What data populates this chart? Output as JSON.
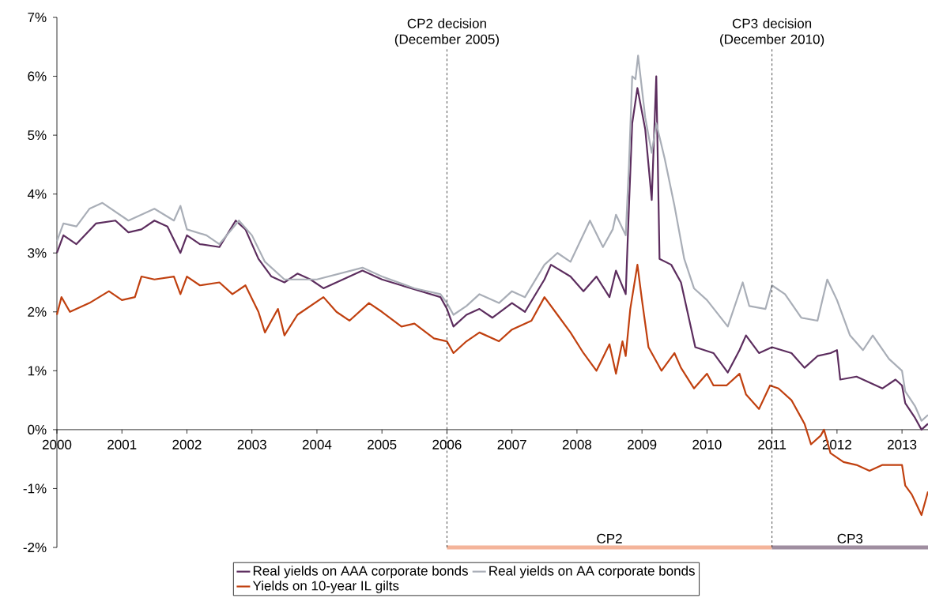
{
  "chart_data": {
    "type": "line",
    "xlim": [
      2000,
      2013.4
    ],
    "ylim": [
      -2,
      7
    ],
    "xticks": [
      {
        "value": 2000,
        "label": "2000"
      },
      {
        "value": 2001,
        "label": "2001"
      },
      {
        "value": 2002,
        "label": "2002"
      },
      {
        "value": 2003,
        "label": "2003"
      },
      {
        "value": 2004,
        "label": "2004"
      },
      {
        "value": 2005,
        "label": "2005"
      },
      {
        "value": 2006,
        "label": "2006"
      },
      {
        "value": 2007,
        "label": "2007"
      },
      {
        "value": 2008,
        "label": "2008"
      },
      {
        "value": 2009,
        "label": "2009"
      },
      {
        "value": 2010,
        "label": "2010"
      },
      {
        "value": 2011,
        "label": "2011"
      },
      {
        "value": 2012,
        "label": "2012"
      },
      {
        "value": 2013,
        "label": "2013"
      }
    ],
    "yticks": [
      {
        "value": -2,
        "label": "-2%"
      },
      {
        "value": -1,
        "label": "-1%"
      },
      {
        "value": 0,
        "label": "0%"
      },
      {
        "value": 1,
        "label": "1%"
      },
      {
        "value": 2,
        "label": "2%"
      },
      {
        "value": 3,
        "label": "3%"
      },
      {
        "value": 4,
        "label": "4%"
      },
      {
        "value": 5,
        "label": "5%"
      },
      {
        "value": 6,
        "label": "6%"
      },
      {
        "value": 7,
        "label": "7%"
      }
    ],
    "legend": "bottom",
    "series": [
      {
        "name": "Real yields on AAA corporate bonds",
        "color": "#5c2d5e",
        "x": [
          2000.0,
          2000.1,
          2000.3,
          2000.6,
          2000.9,
          2001.1,
          2001.3,
          2001.5,
          2001.7,
          2001.9,
          2002.0,
          2002.2,
          2002.5,
          2002.75,
          2002.9,
          2003.1,
          2003.3,
          2003.5,
          2003.7,
          2003.9,
          2004.1,
          2004.5,
          2004.7,
          2005.0,
          2005.3,
          2005.6,
          2005.9,
          2006.0,
          2006.1,
          2006.3,
          2006.5,
          2006.7,
          2007.0,
          2007.2,
          2007.5,
          2007.6,
          2007.9,
          2008.1,
          2008.3,
          2008.5,
          2008.6,
          2008.75,
          2008.8,
          2008.85,
          2008.93,
          2009.05,
          2009.15,
          2009.22,
          2009.27,
          2009.45,
          2009.6,
          2009.82,
          2010.1,
          2010.32,
          2010.5,
          2010.6,
          2010.8,
          2011.0,
          2011.3,
          2011.5,
          2011.7,
          2011.9,
          2012.0,
          2012.05,
          2012.3,
          2012.5,
          2012.7,
          2012.9,
          2013.0,
          2013.05,
          2013.2,
          2013.3,
          2013.4
        ],
        "values": [
          3.0,
          3.3,
          3.15,
          3.5,
          3.55,
          3.35,
          3.4,
          3.55,
          3.45,
          3.0,
          3.3,
          3.15,
          3.1,
          3.55,
          3.4,
          2.9,
          2.6,
          2.5,
          2.65,
          2.55,
          2.4,
          2.6,
          2.7,
          2.55,
          2.45,
          2.35,
          2.25,
          2.05,
          1.75,
          1.95,
          2.05,
          1.9,
          2.15,
          2.0,
          2.55,
          2.8,
          2.6,
          2.35,
          2.6,
          2.25,
          2.7,
          2.3,
          3.8,
          5.2,
          5.8,
          5.1,
          3.9,
          6.0,
          2.9,
          2.8,
          2.5,
          1.4,
          1.3,
          0.97,
          1.35,
          1.6,
          1.3,
          1.4,
          1.3,
          1.05,
          1.25,
          1.3,
          1.35,
          0.85,
          0.9,
          0.8,
          0.7,
          0.85,
          0.75,
          0.45,
          0.2,
          0.0,
          0.1
        ]
      },
      {
        "name": "Real yields on AA corporate bonds",
        "color": "#a9aeb7",
        "x": [
          2000.0,
          2000.1,
          2000.3,
          2000.5,
          2000.7,
          2000.9,
          2001.1,
          2001.3,
          2001.5,
          2001.8,
          2001.9,
          2002.0,
          2002.3,
          2002.5,
          2002.8,
          2003.0,
          2003.2,
          2003.5,
          2004.0,
          2004.7,
          2005.0,
          2005.5,
          2005.9,
          2006.0,
          2006.1,
          2006.3,
          2006.5,
          2006.8,
          2007.0,
          2007.2,
          2007.5,
          2007.7,
          2007.9,
          2008.2,
          2008.4,
          2008.55,
          2008.6,
          2008.75,
          2008.8,
          2008.85,
          2008.9,
          2008.94,
          2009.05,
          2009.15,
          2009.22,
          2009.35,
          2009.5,
          2009.65,
          2009.8,
          2010.0,
          2010.32,
          2010.55,
          2010.65,
          2010.9,
          2011.0,
          2011.2,
          2011.45,
          2011.7,
          2011.85,
          2012.0,
          2012.2,
          2012.4,
          2012.55,
          2012.8,
          2013.0,
          2013.05,
          2013.2,
          2013.3,
          2013.4
        ],
        "values": [
          3.2,
          3.5,
          3.45,
          3.75,
          3.85,
          3.7,
          3.55,
          3.65,
          3.75,
          3.55,
          3.8,
          3.4,
          3.3,
          3.15,
          3.55,
          3.3,
          2.85,
          2.55,
          2.55,
          2.75,
          2.6,
          2.4,
          2.3,
          2.15,
          1.95,
          2.1,
          2.3,
          2.15,
          2.35,
          2.25,
          2.8,
          3.0,
          2.85,
          3.55,
          3.1,
          3.4,
          3.65,
          3.3,
          4.5,
          6.0,
          5.95,
          6.35,
          5.3,
          4.7,
          5.2,
          4.6,
          3.8,
          2.9,
          2.4,
          2.2,
          1.75,
          2.5,
          2.1,
          2.05,
          2.45,
          2.3,
          1.9,
          1.85,
          2.55,
          2.2,
          1.6,
          1.35,
          1.6,
          1.2,
          1.0,
          0.65,
          0.4,
          0.15,
          0.25
        ]
      },
      {
        "name": "Yields on 10-year IL gilts",
        "color": "#c0400f",
        "x": [
          2000.0,
          2000.07,
          2000.2,
          2000.5,
          2000.8,
          2001.0,
          2001.2,
          2001.3,
          2001.5,
          2001.8,
          2001.9,
          2002.0,
          2002.2,
          2002.5,
          2002.7,
          2002.9,
          2003.1,
          2003.2,
          2003.4,
          2003.5,
          2003.7,
          2003.9,
          2004.1,
          2004.3,
          2004.5,
          2004.8,
          2005.0,
          2005.3,
          2005.5,
          2005.8,
          2006.0,
          2006.1,
          2006.3,
          2006.5,
          2006.8,
          2007.0,
          2007.3,
          2007.5,
          2007.7,
          2007.9,
          2008.1,
          2008.3,
          2008.5,
          2008.6,
          2008.7,
          2008.75,
          2008.82,
          2008.93,
          2009.0,
          2009.1,
          2009.3,
          2009.5,
          2009.6,
          2009.8,
          2010.0,
          2010.1,
          2010.3,
          2010.5,
          2010.6,
          2010.8,
          2010.97,
          2011.1,
          2011.3,
          2011.5,
          2011.6,
          2011.75,
          2011.8,
          2011.9,
          2012.1,
          2012.3,
          2012.5,
          2012.7,
          2012.9,
          2013.0,
          2013.05,
          2013.15,
          2013.3,
          2013.4
        ],
        "values": [
          1.95,
          2.25,
          2.0,
          2.15,
          2.35,
          2.2,
          2.25,
          2.6,
          2.55,
          2.6,
          2.3,
          2.6,
          2.45,
          2.5,
          2.3,
          2.45,
          2.0,
          1.65,
          2.05,
          1.6,
          1.95,
          2.1,
          2.25,
          2.0,
          1.85,
          2.15,
          2.0,
          1.75,
          1.8,
          1.55,
          1.5,
          1.3,
          1.5,
          1.65,
          1.5,
          1.7,
          1.85,
          2.25,
          1.95,
          1.65,
          1.3,
          1.0,
          1.45,
          0.95,
          1.5,
          1.25,
          2.05,
          2.8,
          2.2,
          1.4,
          1.0,
          1.3,
          1.05,
          0.7,
          0.95,
          0.75,
          0.75,
          0.95,
          0.6,
          0.35,
          0.75,
          0.7,
          0.5,
          0.1,
          -0.25,
          -0.1,
          0.0,
          -0.4,
          -0.55,
          -0.6,
          -0.7,
          -0.6,
          -0.6,
          -0.6,
          -0.95,
          -1.1,
          -1.45,
          -1.05
        ]
      },
      {
        "color": "#f4b49a",
        "x": [
          2006,
          2011
        ],
        "values": [
          -2,
          -2
        ]
      },
      {
        "color": "#9f8ea0",
        "x": [
          2011,
          2013.4
        ],
        "values": [
          -2,
          -2
        ]
      }
    ],
    "annotations": [
      {
        "text": "CP2",
        "x": 2008.5,
        "y": -2
      },
      {
        "text": "CP3",
        "x": 2012.2,
        "y": -2
      }
    ],
    "ref_lines": [
      {
        "axis": "x",
        "value": 2006,
        "label": "CP2 decision (December 2005)",
        "line_style": "dashed",
        "color": "#000000"
      },
      {
        "axis": "x",
        "value": 2011,
        "label": "CP3 decision (December 2010)",
        "line_style": "dashed",
        "color": "#000000"
      }
    ]
  }
}
